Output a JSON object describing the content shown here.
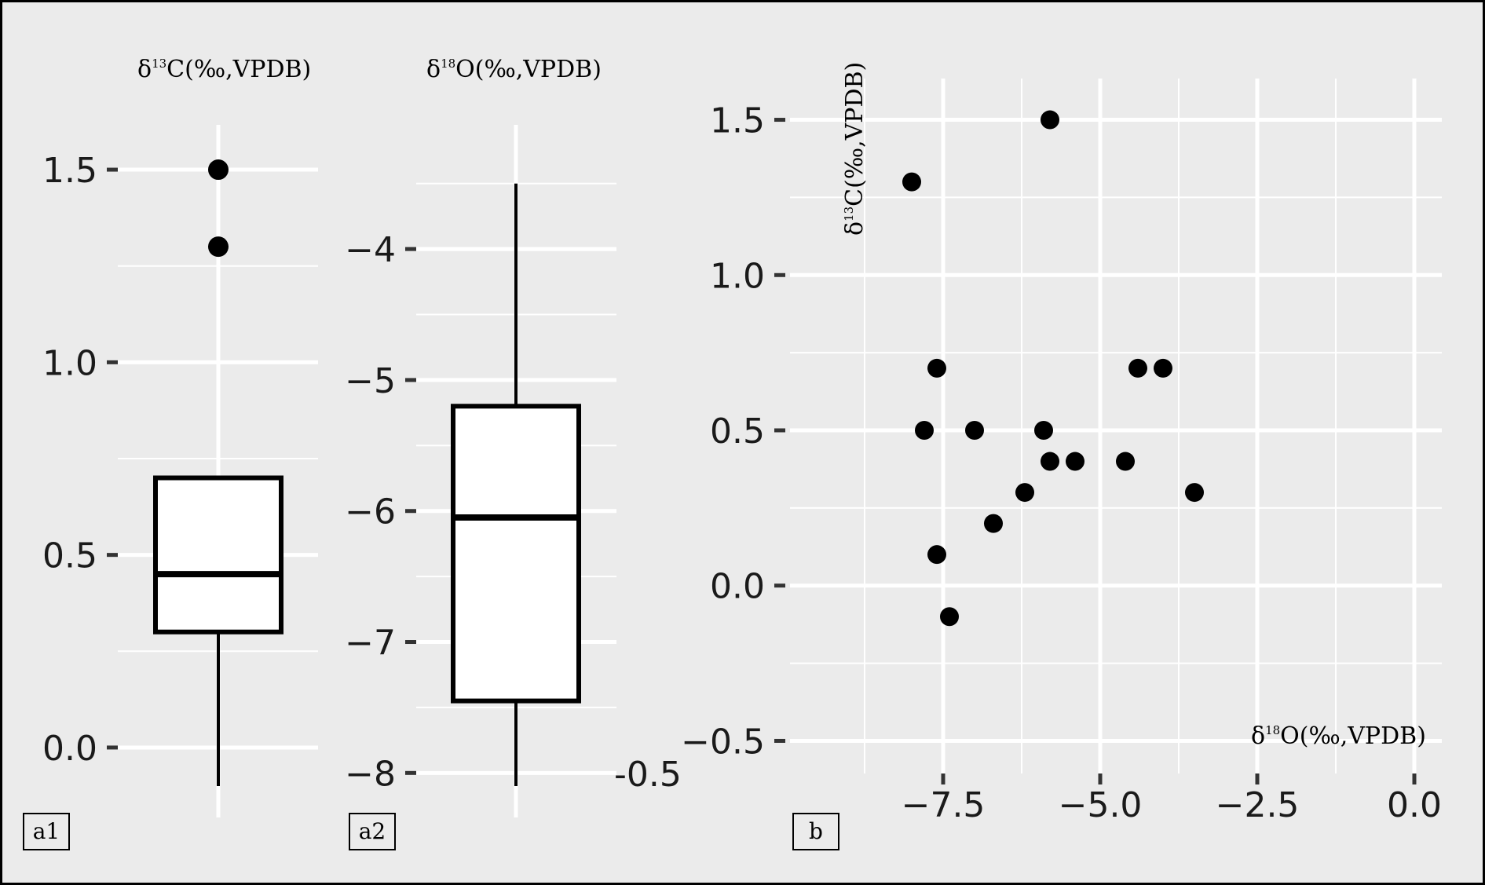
{
  "panels": {
    "a1": "a1",
    "a2": "a2",
    "b": "b"
  },
  "colors": {
    "background": "#ebebeb",
    "grid": "#ffffff",
    "ink": "#000000",
    "box_fill": "#ffffff"
  },
  "chart_data": [
    {
      "type": "boxplot",
      "panel": "a1",
      "title": "δ13C(‰,VPDB)",
      "title_base": "δ",
      "title_sup": "13",
      "title_rest": "C(‰,VPDB)",
      "ylim": [
        -0.1,
        1.6
      ],
      "yticks": [
        0.0,
        0.5,
        1.0,
        1.5
      ],
      "ytick_labels": [
        "0.0",
        "0.5",
        "1.0",
        "1.5"
      ],
      "grid": true,
      "box": {
        "min": -0.1,
        "q1": 0.3,
        "median": 0.45,
        "q3": 0.7,
        "max": 0.7
      },
      "outliers": [
        1.3,
        1.5
      ]
    },
    {
      "type": "boxplot",
      "panel": "a2",
      "title": "δ18O(‰,VPDB)",
      "title_base": "δ",
      "title_sup": "18",
      "title_rest": "O(‰,VPDB)",
      "ylim": [
        -8.1,
        -3.1
      ],
      "yticks": [
        -8,
        -7,
        -6,
        -5,
        -4
      ],
      "ytick_labels": [
        "−8",
        "−7",
        "−6",
        "−5",
        "−4"
      ],
      "grid": true,
      "box": {
        "min": -8.1,
        "q1": -7.45,
        "median": -6.05,
        "q3": -5.2,
        "max": -3.5
      },
      "outliers": [],
      "stray_label": "-0.5"
    },
    {
      "type": "scatter",
      "panel": "b",
      "xlabel": "δ18O(‰,VPDB)",
      "xlabel_base": "δ",
      "xlabel_sup": "18",
      "xlabel_rest": "O(‰,VPDB)",
      "ylabel": "δ13C(‰,VPDB)",
      "ylabel_base": "δ",
      "ylabel_sup": "13",
      "ylabel_rest": "C(‰,VPDB)",
      "xlim": [
        -10.0,
        0.0
      ],
      "ylim": [
        -0.6,
        1.6
      ],
      "xticks": [
        -7.5,
        -5.0,
        -2.5,
        0.0
      ],
      "xtick_labels": [
        "−7.5",
        "−5.0",
        "−2.5",
        "0.0"
      ],
      "yticks": [
        -0.5,
        0.0,
        0.5,
        1.0,
        1.5
      ],
      "ytick_labels": [
        "−0.5",
        "0.0",
        "0.5",
        "1.0",
        "1.5"
      ],
      "grid": true,
      "points": [
        {
          "x": -5.8,
          "y": 1.5
        },
        {
          "x": -8.0,
          "y": 1.3
        },
        {
          "x": -7.6,
          "y": 0.7
        },
        {
          "x": -4.4,
          "y": 0.7
        },
        {
          "x": -4.0,
          "y": 0.7
        },
        {
          "x": -7.8,
          "y": 0.5
        },
        {
          "x": -7.0,
          "y": 0.5
        },
        {
          "x": -5.9,
          "y": 0.5
        },
        {
          "x": -5.8,
          "y": 0.4
        },
        {
          "x": -5.4,
          "y": 0.4
        },
        {
          "x": -4.6,
          "y": 0.4
        },
        {
          "x": -6.2,
          "y": 0.3
        },
        {
          "x": -3.5,
          "y": 0.3
        },
        {
          "x": -6.7,
          "y": 0.2
        },
        {
          "x": -7.6,
          "y": 0.1
        },
        {
          "x": -7.4,
          "y": -0.1
        }
      ]
    }
  ]
}
